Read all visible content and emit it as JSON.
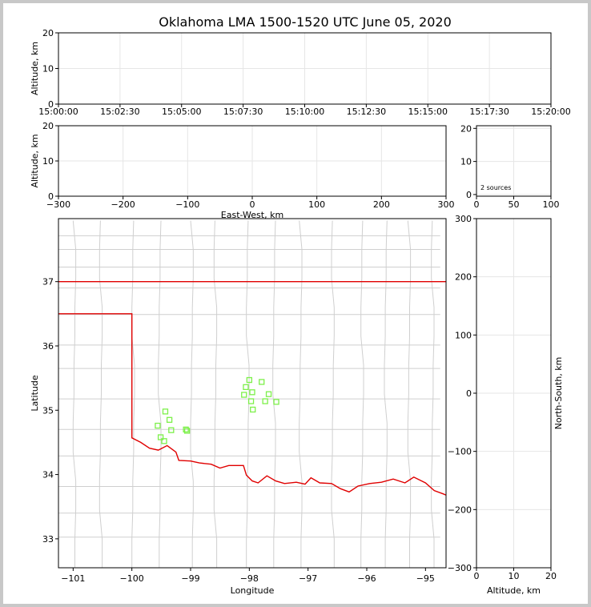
{
  "chart_data": [
    {
      "id": "time-height",
      "type": "scatter",
      "title": "Oklahoma LMA 1500-1520 UTC June 05, 2020",
      "xlabel": "",
      "ylabel": "Altitude, km",
      "x_ticks": [
        "15:00:00",
        "15:02:30",
        "15:05:00",
        "15:07:30",
        "15:10:00",
        "15:12:30",
        "15:15:00",
        "15:17:30",
        "15:20:00"
      ],
      "y_ticks": [
        0,
        10,
        20
      ],
      "ylim": [
        0,
        20
      ],
      "grid": true
    },
    {
      "id": "ew-height",
      "type": "scatter",
      "xlabel": "East-West, km",
      "ylabel": "Altitude, km",
      "xlim": [
        -300,
        300
      ],
      "x_ticks": [
        -300,
        -200,
        -100,
        0,
        100,
        200,
        300
      ],
      "ylim": [
        0,
        20
      ],
      "y_ticks": [
        0,
        10,
        20
      ],
      "grid": true
    },
    {
      "id": "histogram",
      "type": "bar",
      "annotation": "2 sources",
      "xlim": [
        0,
        100
      ],
      "x_ticks": [
        0,
        50,
        100
      ],
      "ylim": [
        0,
        20
      ],
      "y_ticks": [
        0,
        10,
        20
      ],
      "grid": true
    },
    {
      "id": "plan-view",
      "type": "scatter",
      "xlabel": "Longitude",
      "ylabel": "Latitude",
      "xlim": [
        -101.25,
        -94.65
      ],
      "ylim": [
        32.55,
        37.98
      ],
      "x_ticks": [
        -101,
        -100,
        -99,
        -98,
        -97,
        -96,
        -95
      ],
      "y_ticks": [
        33,
        34,
        35,
        36,
        37
      ],
      "points": [
        [
          -98.0,
          35.47
        ],
        [
          -97.79,
          35.44
        ],
        [
          -98.06,
          35.36
        ],
        [
          -97.95,
          35.28
        ],
        [
          -97.67,
          35.25
        ],
        [
          -98.09,
          35.24
        ],
        [
          -97.97,
          35.14
        ],
        [
          -97.73,
          35.14
        ],
        [
          -97.54,
          35.13
        ],
        [
          -97.94,
          35.01
        ],
        [
          -99.43,
          34.98
        ],
        [
          -99.36,
          34.85
        ],
        [
          -99.56,
          34.76
        ],
        [
          -99.33,
          34.69
        ],
        [
          -99.08,
          34.7
        ],
        [
          -99.06,
          34.68
        ],
        [
          -99.51,
          34.58
        ],
        [
          -99.45,
          34.52
        ]
      ]
    },
    {
      "id": "ns-height",
      "type": "scatter",
      "xlabel": "Altitude, km",
      "ylabel": "North-South, km",
      "xlim": [
        0,
        20
      ],
      "x_ticks": [
        0,
        10,
        20
      ],
      "ylim": [
        -300,
        300
      ],
      "y_ticks": [
        -300,
        -200,
        -100,
        0,
        100,
        200,
        300
      ],
      "grid": true
    }
  ],
  "colors": {
    "state": "#e00000",
    "county": "#cfcfcf",
    "source": "#7df04a"
  }
}
